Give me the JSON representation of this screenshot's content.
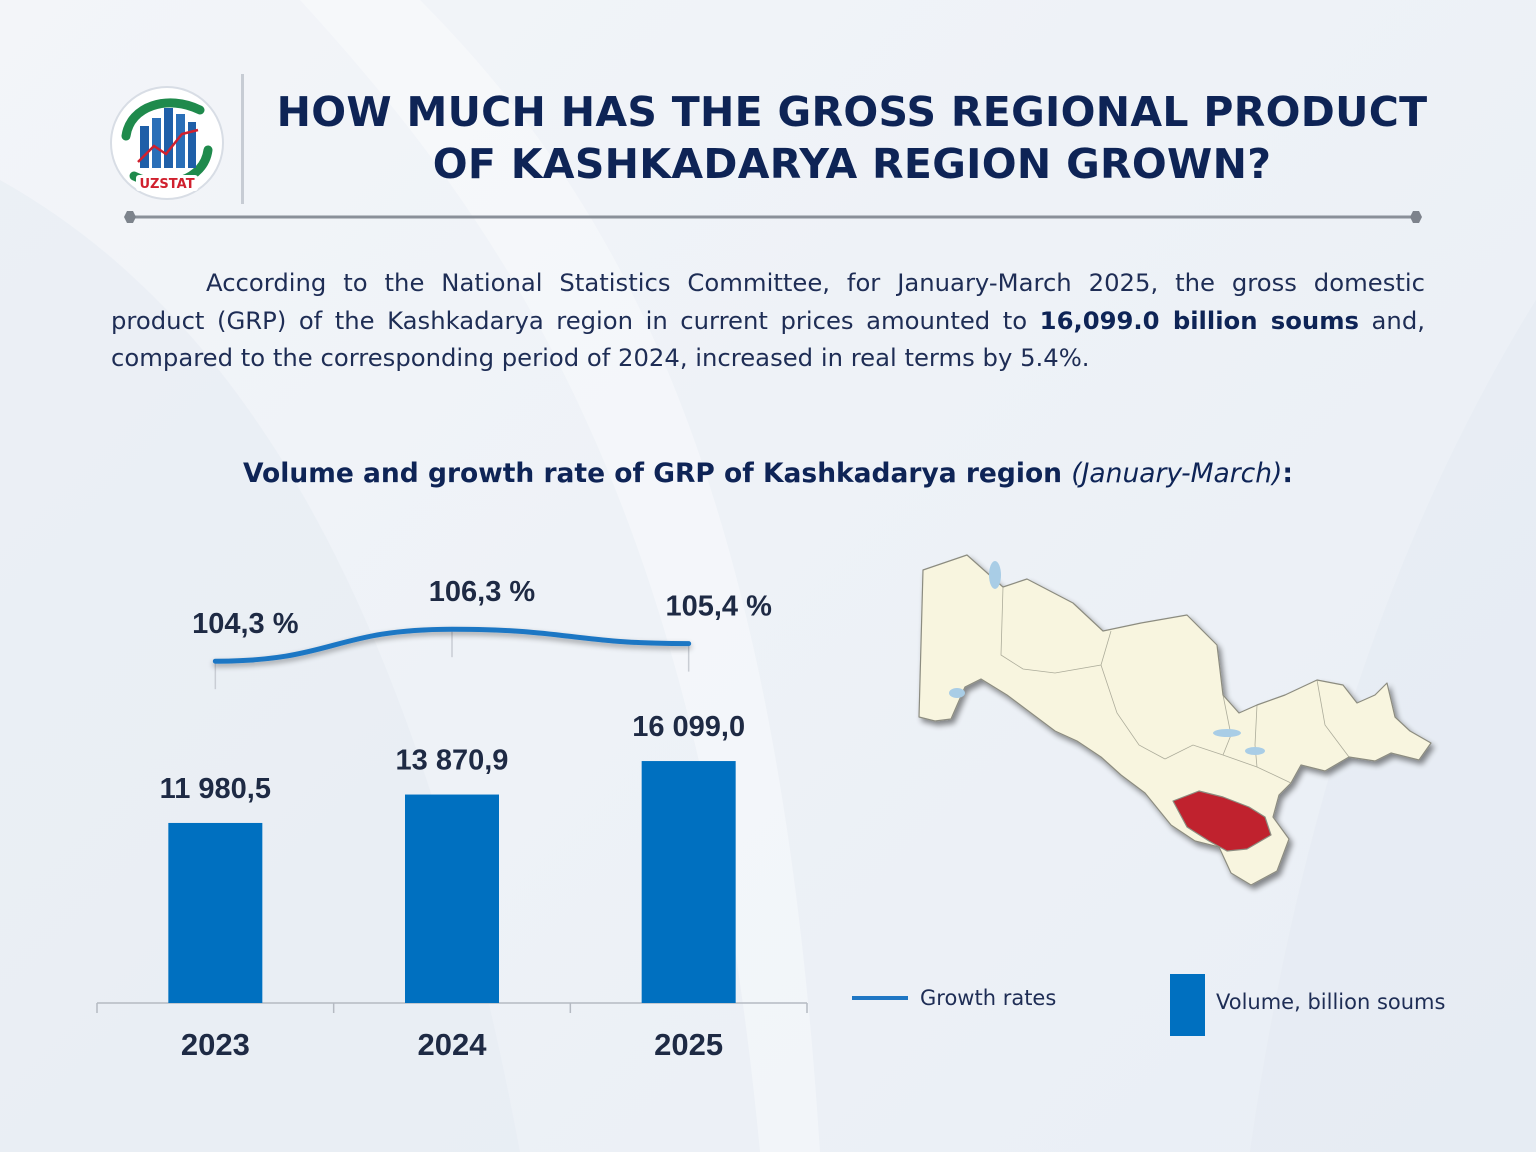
{
  "logo": {
    "text": "UZSTAT",
    "icon": "uzstat-logo-icon"
  },
  "header": {
    "title_line1": "HOW MUCH HAS THE GROSS REGIONAL PRODUCT",
    "title_line2": "OF KASHKADARYA REGION GROWN?"
  },
  "description": {
    "part1": "According to the National Statistics Committee, for January-March 2025, the gross domestic product (GRP) of the Kashkadarya region in current prices amounted to",
    "bold": "16,099.0 billion soums",
    "part2": "and, compared to the corresponding period of 2024, increased in real terms by 5.4%."
  },
  "chart_heading": {
    "main": "Volume and growth rate of GRP of Kashkadarya region",
    "period": "(January-March)",
    "colon": ":"
  },
  "chart_data": {
    "type": "bar",
    "title": "Volume and growth rate of GRP of Kashkadarya region (January-March)",
    "categories": [
      "2023",
      "2024",
      "2025"
    ],
    "series": [
      {
        "name": "Volume, billion soums",
        "type": "bar",
        "values": [
          11980.5,
          13870.9,
          16099.0
        ],
        "labels": [
          "11 980,5",
          "13 870,9",
          "16 099,0"
        ]
      },
      {
        "name": "Growth rates",
        "type": "line",
        "values": [
          104.3,
          106.3,
          105.4
        ],
        "labels": [
          "104,3 %",
          "106,3 %",
          "105,4 %"
        ]
      }
    ],
    "ylim": [
      0,
      17500
    ],
    "colors": {
      "bar": "#0070c0",
      "line": "#1f77c4"
    }
  },
  "legend": {
    "line_label": "Growth rates",
    "bar_label": "Volume, billion soums"
  },
  "map": {
    "icon": "uzbekistan-map-icon",
    "highlight_color": "#c0202e",
    "region": "Kashkadarya"
  }
}
